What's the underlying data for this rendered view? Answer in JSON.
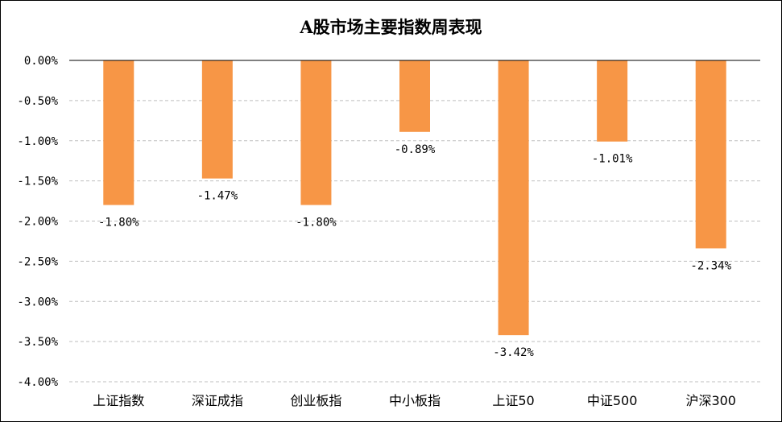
{
  "chart_data": {
    "type": "bar",
    "title": "A股市场主要指数周表现",
    "categories": [
      "上证指数",
      "深证成指",
      "创业板指",
      "中小板指",
      "上证50",
      "中证500",
      "沪深300"
    ],
    "values": [
      -1.8,
      -1.47,
      -1.8,
      -0.89,
      -3.42,
      -1.01,
      -2.34
    ],
    "data_labels": [
      "-1.80%",
      "-1.47%",
      "-1.80%",
      "-0.89%",
      "-3.42%",
      "-1.01%",
      "-2.34%"
    ],
    "y_ticks": [
      0,
      -0.5,
      -1,
      -1.5,
      -2,
      -2.5,
      -3,
      -3.5,
      -4
    ],
    "y_tick_labels": [
      "0.00%",
      "-0.50%",
      "-1.00%",
      "-1.50%",
      "-2.00%",
      "-2.50%",
      "-3.00%",
      "-3.50%",
      "-4.00%"
    ],
    "ylim": [
      -4,
      0
    ],
    "xlabel": "",
    "ylabel": "",
    "grid": "horizontal-dashed",
    "legend": "none",
    "bar_color": "#F79646",
    "grid_color": "#BFBFBF",
    "axis_color": "#000000"
  }
}
